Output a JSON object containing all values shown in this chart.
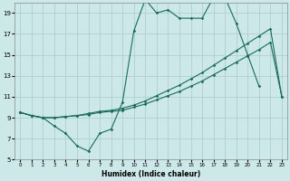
{
  "title": "",
  "xlabel": "Humidex (Indice chaleur)",
  "xlim": [
    -0.5,
    23.5
  ],
  "ylim": [
    5,
    20
  ],
  "yticks": [
    5,
    7,
    9,
    11,
    13,
    15,
    17,
    19
  ],
  "xticks": [
    0,
    1,
    2,
    3,
    4,
    5,
    6,
    7,
    8,
    9,
    10,
    11,
    12,
    13,
    14,
    15,
    16,
    17,
    18,
    19,
    20,
    21,
    22,
    23
  ],
  "bg_color": "#cce8e8",
  "grid_color": "#b0d4d4",
  "line_color": "#1a6b5a",
  "line1_x": [
    0,
    1,
    2,
    3,
    4,
    5,
    6,
    7,
    8,
    9,
    10,
    11,
    12,
    13,
    14,
    15,
    16,
    17,
    18,
    19,
    20,
    21
  ],
  "line1_y": [
    9.5,
    9.2,
    9.0,
    8.2,
    7.5,
    6.3,
    5.8,
    7.5,
    7.9,
    10.5,
    17.3,
    20.3,
    19.0,
    19.3,
    18.5,
    18.5,
    18.5,
    20.5,
    20.5,
    18.0,
    15.0,
    12.0
  ],
  "line2_x": [
    0,
    1,
    2,
    3,
    4,
    5,
    6,
    7,
    8,
    9,
    10,
    11,
    12,
    13,
    14,
    15,
    16,
    17,
    18,
    19,
    20,
    21,
    22,
    23
  ],
  "line2_y": [
    9.5,
    9.2,
    9.0,
    9.0,
    9.1,
    9.2,
    9.3,
    9.5,
    9.6,
    9.7,
    10.0,
    10.3,
    10.7,
    11.1,
    11.5,
    12.0,
    12.5,
    13.1,
    13.7,
    14.3,
    14.9,
    15.5,
    16.2,
    11.0
  ],
  "line3_x": [
    0,
    1,
    2,
    3,
    4,
    5,
    6,
    7,
    8,
    9,
    10,
    11,
    12,
    13,
    14,
    15,
    16,
    17,
    18,
    19,
    20,
    21,
    22,
    23
  ],
  "line3_y": [
    9.5,
    9.2,
    9.0,
    9.0,
    9.1,
    9.2,
    9.4,
    9.6,
    9.7,
    9.9,
    10.2,
    10.6,
    11.1,
    11.6,
    12.1,
    12.7,
    13.3,
    14.0,
    14.7,
    15.4,
    16.1,
    16.8,
    17.5,
    11.0
  ]
}
